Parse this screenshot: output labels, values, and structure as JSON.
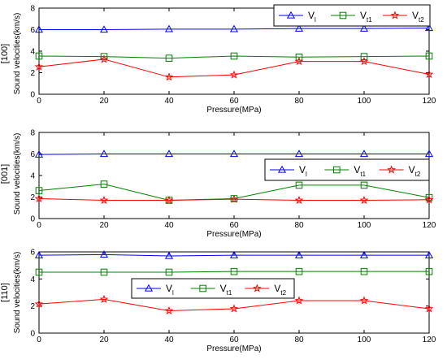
{
  "chart_data": [
    {
      "type": "line",
      "panel_label": "[100]",
      "xlabel": "Pressure(MPa)",
      "ylabel": "Sound velocities(km/s)",
      "x": [
        0,
        20,
        40,
        60,
        80,
        100,
        120
      ],
      "xticks": [
        "0",
        "20",
        "40",
        "60",
        "80",
        "100",
        "120"
      ],
      "yticks": [
        "0",
        "2",
        "4",
        "6",
        "8"
      ],
      "xlim": [
        0,
        120
      ],
      "ylim": [
        0,
        8
      ],
      "grid": false,
      "legend": {
        "placement": "top-right",
        "entries": [
          [
            "V",
            "l"
          ],
          [
            "V",
            "t1"
          ],
          [
            "V",
            "t2"
          ]
        ]
      },
      "series": [
        {
          "marker": "triangle",
          "color": "#0000ff",
          "values": [
            6.0,
            6.0,
            6.05,
            6.05,
            6.1,
            6.1,
            6.15
          ]
        },
        {
          "marker": "square",
          "color": "#008000",
          "values": [
            3.55,
            3.5,
            3.35,
            3.55,
            3.45,
            3.5,
            3.55
          ]
        },
        {
          "marker": "star",
          "color": "#ff0000",
          "values": [
            2.55,
            3.25,
            1.6,
            1.8,
            3.05,
            3.05,
            1.85
          ]
        }
      ]
    },
    {
      "type": "line",
      "panel_label": "[001]",
      "xlabel": "Pressure(MPa)",
      "ylabel": "Sound velocities(km/s)",
      "x": [
        0,
        20,
        40,
        60,
        80,
        100,
        120
      ],
      "xticks": [
        "0",
        "20",
        "40",
        "60",
        "80",
        "100",
        "120"
      ],
      "yticks": [
        "0",
        "2",
        "4",
        "6",
        "8"
      ],
      "xlim": [
        0,
        120
      ],
      "ylim": [
        0,
        8
      ],
      "grid": false,
      "legend": {
        "placement": "center-right",
        "entries": [
          [
            "V",
            "l"
          ],
          [
            "V",
            "t1"
          ],
          [
            "V",
            "t2"
          ]
        ]
      },
      "series": [
        {
          "marker": "triangle",
          "color": "#0000ff",
          "values": [
            5.95,
            6.0,
            6.0,
            6.0,
            6.0,
            6.0,
            6.0
          ]
        },
        {
          "marker": "square",
          "color": "#008000",
          "values": [
            2.6,
            3.2,
            1.7,
            1.85,
            3.1,
            3.1,
            1.95
          ]
        },
        {
          "marker": "star",
          "color": "#ff0000",
          "values": [
            1.85,
            1.7,
            1.7,
            1.8,
            1.7,
            1.7,
            1.75
          ]
        }
      ]
    },
    {
      "type": "line",
      "panel_label": "[110]",
      "xlabel": "Pressure(MPa)",
      "ylabel": "Sound velocities(km/s)",
      "x": [
        0,
        20,
        40,
        60,
        80,
        100,
        120
      ],
      "xticks": [
        "0",
        "20",
        "40",
        "60",
        "80",
        "100",
        "120"
      ],
      "yticks": [
        "0",
        "2",
        "4",
        "6"
      ],
      "xlim": [
        0,
        120
      ],
      "ylim": [
        0,
        6
      ],
      "grid": false,
      "legend": {
        "placement": "center",
        "entries": [
          [
            "V",
            "l"
          ],
          [
            "V",
            "t1"
          ],
          [
            "V",
            "t2"
          ]
        ]
      },
      "series": [
        {
          "marker": "triangle",
          "color": "#0000ff",
          "values": [
            5.75,
            5.8,
            5.7,
            5.75,
            5.75,
            5.75,
            5.75
          ]
        },
        {
          "marker": "square",
          "color": "#008000",
          "values": [
            4.5,
            4.5,
            4.5,
            4.55,
            4.55,
            4.55,
            4.55
          ]
        },
        {
          "marker": "star",
          "color": "#ff0000",
          "values": [
            2.15,
            2.5,
            1.65,
            1.8,
            2.4,
            2.4,
            1.8
          ]
        }
      ]
    }
  ]
}
